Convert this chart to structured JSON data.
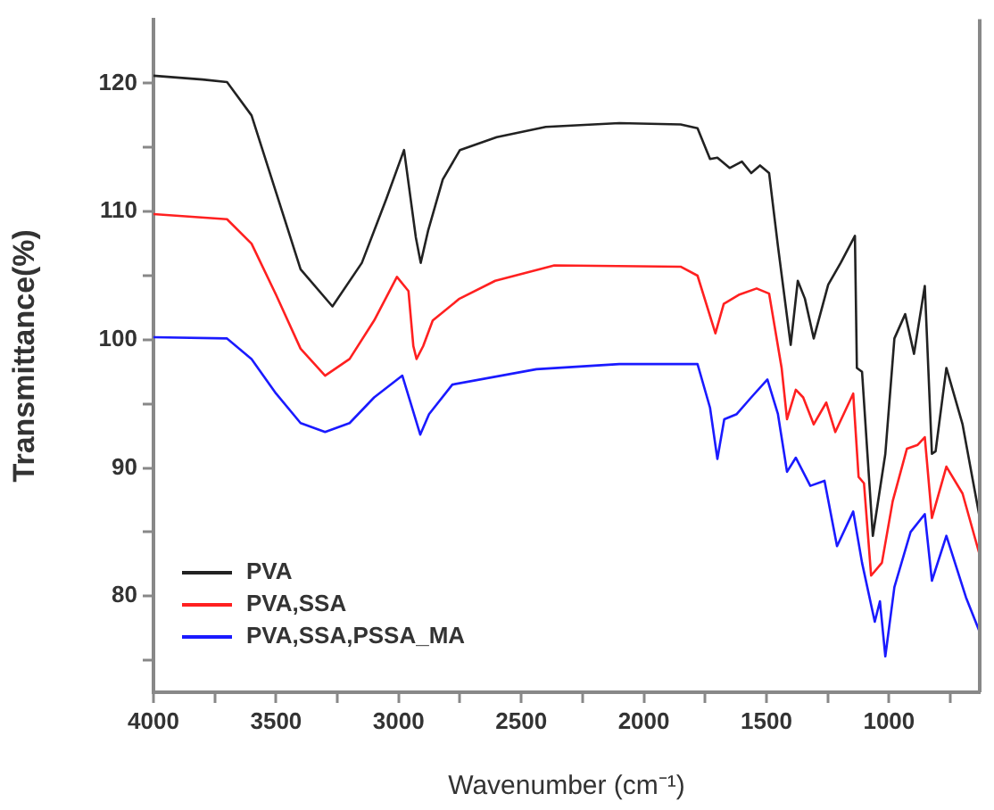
{
  "chart_data": {
    "type": "line",
    "xlabel": "Wavenumber (cm⁻¹)",
    "ylabel": "Transmittance(%)",
    "xlim": [
      4000,
      630
    ],
    "ylim": [
      72.5,
      125
    ],
    "xticks": [
      4000,
      {
        "value": 3750,
        "label": null
      },
      3500,
      {
        "value": 3250,
        "label": null
      },
      3000,
      {
        "value": 2750,
        "label": null
      },
      2500,
      {
        "value": 2250,
        "label": null
      },
      2000,
      {
        "value": 1750,
        "label": null
      },
      1500,
      {
        "value": 1250,
        "label": null
      },
      1000,
      {
        "value": 750,
        "label": null
      }
    ],
    "yticks": [
      {
        "value": 75,
        "label": null
      },
      80,
      {
        "value": 85,
        "label": null
      },
      90,
      {
        "value": 95,
        "label": null
      },
      100,
      {
        "value": 105,
        "label": null
      },
      110,
      {
        "value": 115,
        "label": null
      },
      120
    ],
    "grid": false,
    "legend": "bottom left",
    "marker": "none",
    "line_style": "solid",
    "series": [
      {
        "name": "PVA",
        "color": "#222222",
        "x": [
          4000,
          3800,
          3700,
          3600,
          3500,
          3400,
          3270,
          3150,
          3050,
          2978,
          2930,
          2910,
          2880,
          2850,
          2820,
          2750,
          2600,
          2400,
          2100,
          1850,
          1781,
          1730,
          1700,
          1650,
          1600,
          1562,
          1526,
          1489,
          1453,
          1401,
          1372,
          1343,
          1307,
          1248,
          1197,
          1139,
          1131,
          1110,
          1066,
          1015,
          978,
          934,
          898,
          854,
          825,
          810,
          766,
          700,
          630
        ],
        "values": [
          120.6,
          120.3,
          120.1,
          117.5,
          111.5,
          105.5,
          102.6,
          106,
          111,
          114.8,
          108,
          106,
          108.5,
          110.5,
          112.5,
          114.8,
          115.8,
          116.6,
          116.9,
          116.8,
          116.5,
          114.1,
          114.2,
          113.4,
          113.9,
          113,
          113.6,
          113,
          107.3,
          99.6,
          104.6,
          103.2,
          100.1,
          104.3,
          106,
          108.1,
          97.8,
          97.5,
          84.7,
          91.1,
          100.1,
          102,
          98.9,
          104.2,
          91.1,
          91.3,
          97.8,
          93.4,
          86.1
        ]
      },
      {
        "name": "PVA,SSA",
        "color": "#ff2020",
        "x": [
          4000,
          3700,
          3600,
          3500,
          3400,
          3300,
          3200,
          3100,
          3007,
          2960,
          2940,
          2927,
          2900,
          2861,
          2752,
          2606,
          2365,
          1850,
          1781,
          1708,
          1674,
          1613,
          1540,
          1489,
          1438,
          1416,
          1380,
          1350,
          1307,
          1256,
          1219,
          1146,
          1124,
          1102,
          1073,
          1029,
          985,
          927,
          883,
          854,
          825,
          766,
          700,
          630
        ],
        "values": [
          109.8,
          109.4,
          107.5,
          103.5,
          99.3,
          97.2,
          98.5,
          101.5,
          104.9,
          103.8,
          99.5,
          98.5,
          99.5,
          101.5,
          103.2,
          104.6,
          105.8,
          105.7,
          105,
          100.5,
          102.8,
          103.5,
          104,
          103.6,
          97.8,
          93.8,
          96.1,
          95.5,
          93.4,
          95.1,
          92.8,
          95.8,
          89.3,
          88.8,
          81.6,
          82.6,
          87.4,
          91.5,
          91.8,
          92.4,
          86.1,
          90.1,
          88,
          83.2
        ]
      },
      {
        "name": "PVA,SSA,PSSA_MA",
        "color": "#1a1aff",
        "x": [
          4000,
          3700,
          3600,
          3500,
          3400,
          3300,
          3200,
          3100,
          2985,
          2950,
          2912,
          2876,
          2781,
          2438,
          2100,
          1781,
          1730,
          1700,
          1672,
          1621,
          1562,
          1496,
          1453,
          1416,
          1380,
          1321,
          1263,
          1212,
          1146,
          1110,
          1058,
          1037,
          1015,
          978,
          912,
          854,
          825,
          766,
          686,
          630
        ],
        "values": [
          100.2,
          100.1,
          98.5,
          95.8,
          93.5,
          92.8,
          93.5,
          95.5,
          97.2,
          95,
          92.6,
          94.2,
          96.5,
          97.7,
          98.1,
          98.1,
          94.7,
          90.7,
          93.8,
          94.2,
          95.5,
          96.9,
          94.2,
          89.7,
          90.8,
          88.6,
          89,
          83.9,
          86.6,
          82.6,
          78,
          79.6,
          75.3,
          80.7,
          85,
          86.4,
          81.2,
          84.7,
          79.9,
          77.2
        ]
      }
    ]
  }
}
